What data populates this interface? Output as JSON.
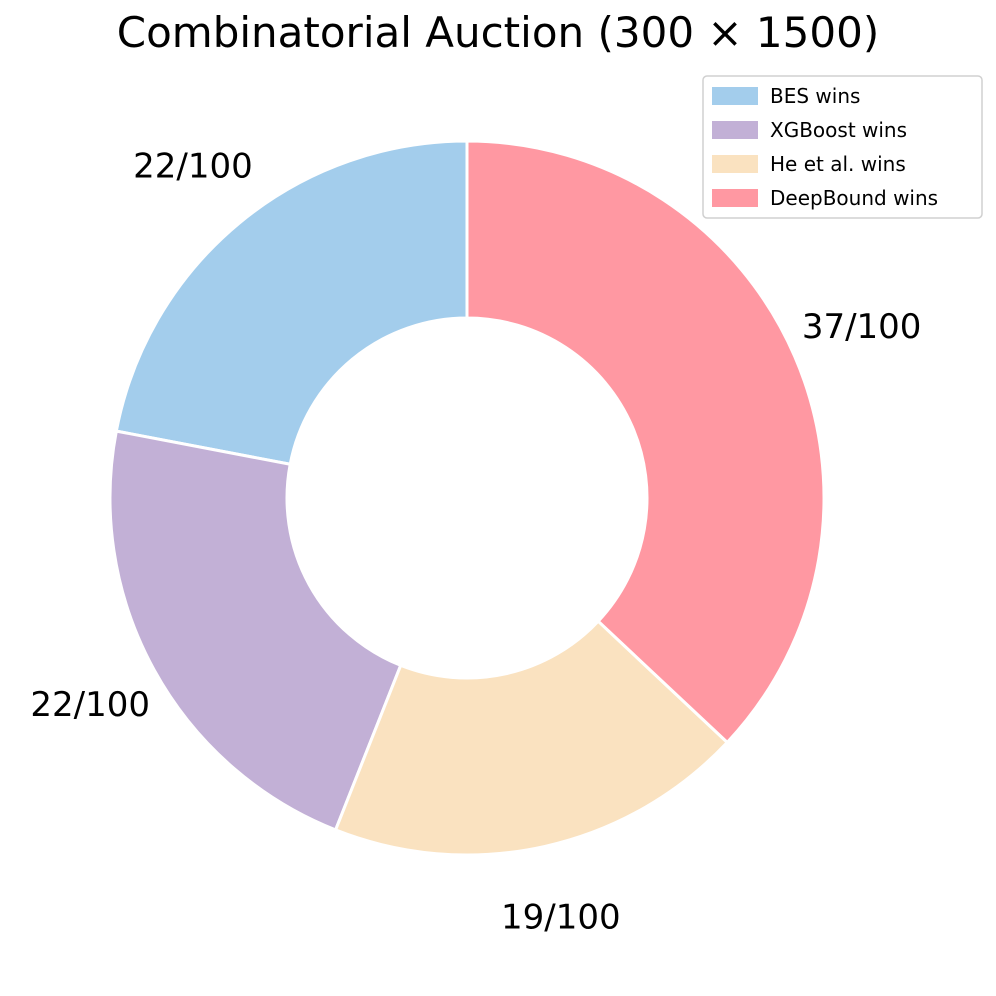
{
  "chart_data": {
    "type": "pie",
    "variant": "donut",
    "title": "Combinatorial Auction (300 × 1500)",
    "series": [
      {
        "name": "BES wins",
        "value": 22,
        "label": "22/100",
        "color": "#a3cdec"
      },
      {
        "name": "XGBoost wins",
        "value": 22,
        "label": "22/100",
        "color": "#c2b0d6"
      },
      {
        "name": "He et al. wins",
        "value": 19,
        "label": "19/100",
        "color": "#fae2c0"
      },
      {
        "name": "DeepBound wins",
        "value": 37,
        "label": "37/100",
        "color": "#ff98a2"
      }
    ],
    "total": 100,
    "start_angle_deg": 90,
    "direction": "counterclockwise",
    "legend_position": "top-right",
    "slice_edge_color": "#ffffff"
  }
}
